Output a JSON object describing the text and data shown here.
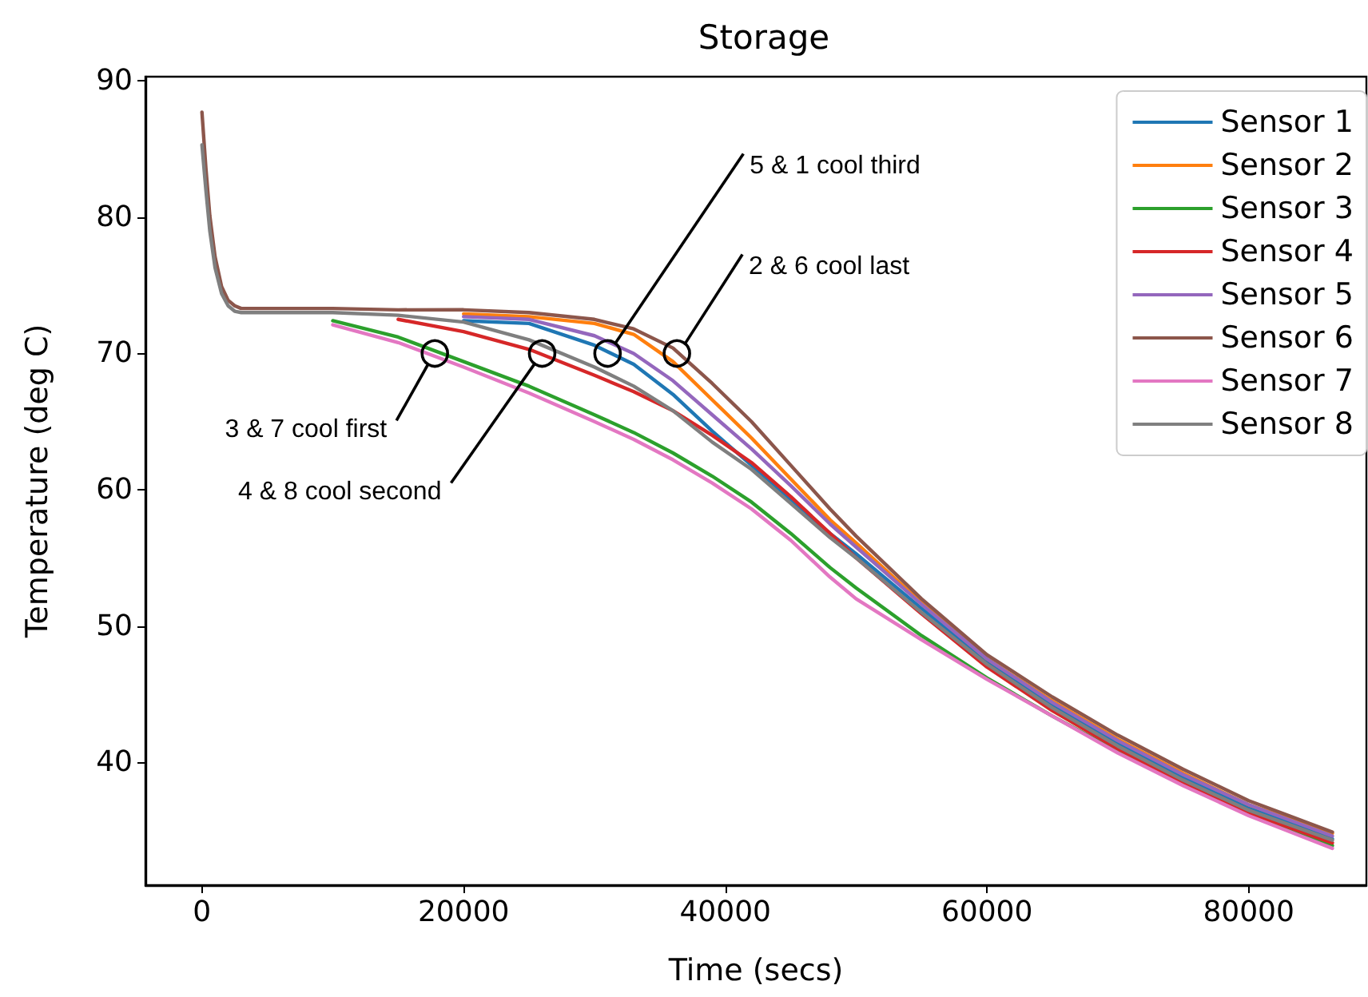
{
  "chart_data": {
    "type": "line",
    "title": "Storage",
    "xlabel": "Time (secs)",
    "ylabel": "Temperature (deg C)",
    "x": [
      0,
      300,
      600,
      1000,
      1500,
      2000,
      2500,
      3000,
      4000,
      6000,
      10000,
      15000,
      20000,
      25000,
      30000,
      33000,
      36000,
      39000,
      42000,
      45000,
      48000,
      50000,
      55000,
      60000,
      65000,
      70000,
      75000,
      80000,
      86400
    ],
    "series": [
      {
        "name": "Sensor 1",
        "color": "#1f77b4",
        "values": [
          null,
          null,
          null,
          null,
          null,
          null,
          null,
          null,
          null,
          null,
          null,
          null,
          72.4,
          72.2,
          70.6,
          69.2,
          67.0,
          64.3,
          61.8,
          59.3,
          56.8,
          55.3,
          51.3,
          47.4,
          44.2,
          41.4,
          38.9,
          36.7,
          34.4
        ]
      },
      {
        "name": "Sensor 2",
        "color": "#ff7f0e",
        "values": [
          null,
          null,
          null,
          null,
          null,
          null,
          null,
          null,
          null,
          null,
          null,
          null,
          72.9,
          72.7,
          72.2,
          71.4,
          69.4,
          66.6,
          63.8,
          60.8,
          57.8,
          56.1,
          51.7,
          47.6,
          44.5,
          41.7,
          39.2,
          36.9,
          34.8
        ]
      },
      {
        "name": "Sensor 3",
        "color": "#2ca02c",
        "values": [
          null,
          null,
          null,
          null,
          null,
          null,
          null,
          null,
          null,
          null,
          72.4,
          71.2,
          69.4,
          67.6,
          65.5,
          64.2,
          62.7,
          61.0,
          59.1,
          56.8,
          54.3,
          52.8,
          49.3,
          46.2,
          43.4,
          40.8,
          38.4,
          36.2,
          33.9
        ]
      },
      {
        "name": "Sensor 4",
        "color": "#d62728",
        "values": [
          null,
          null,
          null,
          null,
          null,
          null,
          null,
          null,
          null,
          null,
          null,
          72.5,
          71.6,
          70.3,
          68.4,
          67.2,
          65.8,
          64.0,
          62.0,
          59.5,
          56.8,
          55.0,
          50.9,
          47.0,
          43.8,
          41.0,
          38.5,
          36.3,
          34.1
        ]
      },
      {
        "name": "Sensor 5",
        "color": "#9467bd",
        "values": [
          null,
          null,
          null,
          null,
          null,
          null,
          null,
          null,
          null,
          null,
          null,
          null,
          72.7,
          72.5,
          71.3,
          70.0,
          68.0,
          65.5,
          63.0,
          60.3,
          57.5,
          55.8,
          51.6,
          47.6,
          44.4,
          41.6,
          39.1,
          36.9,
          34.6
        ]
      },
      {
        "name": "Sensor 6",
        "color": "#8c564b",
        "values": [
          87.7,
          83.6,
          80.1,
          77.1,
          74.9,
          73.9,
          73.5,
          73.3,
          73.3,
          73.3,
          73.3,
          73.2,
          73.2,
          73.0,
          72.5,
          71.8,
          70.4,
          67.8,
          65.0,
          61.8,
          58.6,
          56.6,
          52.0,
          47.9,
          44.8,
          42.0,
          39.5,
          37.2,
          34.9
        ]
      },
      {
        "name": "Sensor 7",
        "color": "#e377c2",
        "values": [
          null,
          null,
          null,
          null,
          null,
          null,
          null,
          null,
          null,
          null,
          72.1,
          70.8,
          69.0,
          67.1,
          65.0,
          63.7,
          62.2,
          60.5,
          58.6,
          56.3,
          53.6,
          52.0,
          49.0,
          46.1,
          43.4,
          40.7,
          38.3,
          36.1,
          33.7
        ]
      },
      {
        "name": "Sensor 8",
        "color": "#7f7f7f",
        "values": [
          85.3,
          82.0,
          79.0,
          76.3,
          74.4,
          73.5,
          73.1,
          73.0,
          73.0,
          73.0,
          73.0,
          72.8,
          72.3,
          71.0,
          69.0,
          67.6,
          65.8,
          63.5,
          61.5,
          59.0,
          56.5,
          55.0,
          51.0,
          47.2,
          44.0,
          41.2,
          38.7,
          36.5,
          34.3
        ]
      }
    ],
    "annotations": [
      {
        "text": "3 & 7 cool first",
        "x": 17800,
        "y": 70
      },
      {
        "text": "4 & 8 cool second",
        "x": 26000,
        "y": 70
      },
      {
        "text": "5 & 1 cool third",
        "x": 31000,
        "y": 70
      },
      {
        "text": "2 & 6 cool last",
        "x": 36300,
        "y": 70
      }
    ],
    "xlim": [
      -4320,
      89000
    ],
    "ylim": [
      31,
      90.3
    ],
    "xticks": [
      0,
      20000,
      40000,
      60000,
      80000
    ],
    "yticks": [
      40,
      50,
      60,
      70,
      80,
      90
    ],
    "legend": "top right"
  }
}
